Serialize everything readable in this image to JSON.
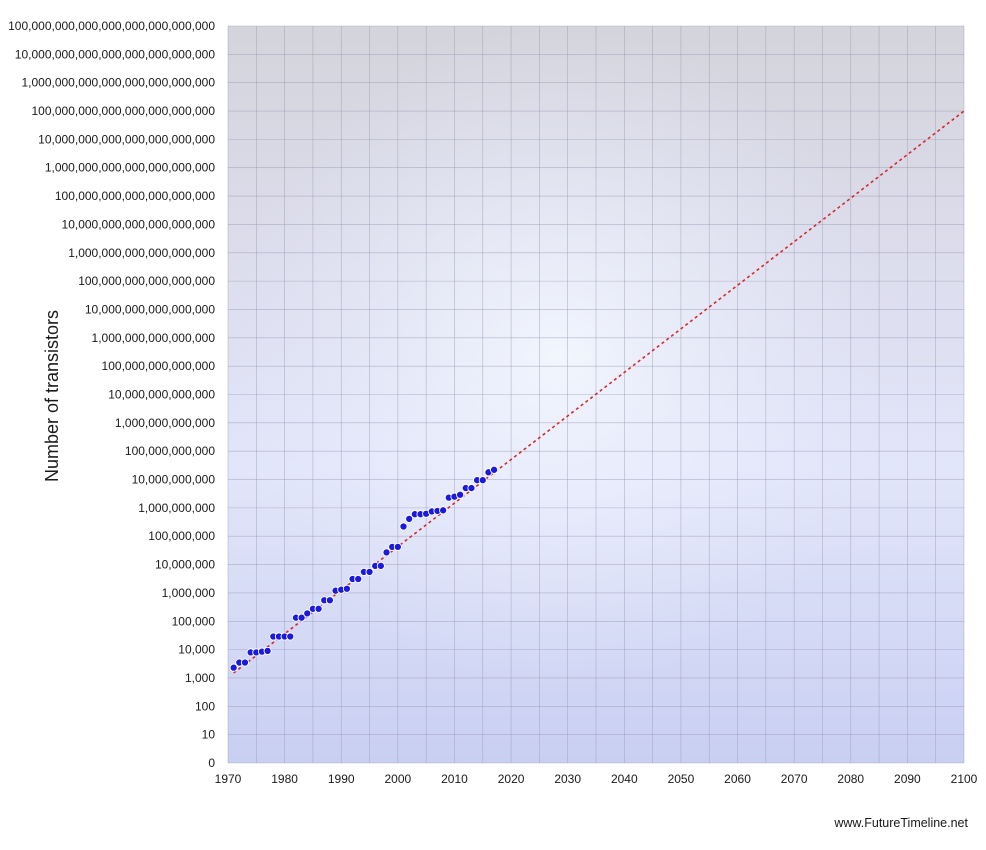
{
  "chart_data": {
    "type": "scatter",
    "title": "",
    "ylabel": "Number of transistors",
    "xlabel": "",
    "y_scale": "log",
    "xlim": [
      1970,
      2100
    ],
    "ylim": [
      0,
      100000000000000000000000000
    ],
    "x_ticks": [
      "1970",
      "1980",
      "1990",
      "2000",
      "2010",
      "2020",
      "2030",
      "2040",
      "2050",
      "2060",
      "2070",
      "2080",
      "2090",
      "2100"
    ],
    "y_ticks": [
      "0",
      "10",
      "100",
      "1,000",
      "10,000",
      "100,000",
      "1,000,000",
      "10,000,000",
      "100,000,000",
      "1,000,000,000",
      "10,000,000,000",
      "100,000,000,000",
      "1,000,000,000,000",
      "10,000,000,000,000",
      "100,000,000,000,000",
      "1,000,000,000,000,000",
      "10,000,000,000,000,000",
      "100,000,000,000,000,000",
      "1,000,000,000,000,000,000",
      "10,000,000,000,000,000,000",
      "100,000,000,000,000,000,000",
      "1,000,000,000,000,000,000,000",
      "10,000,000,000,000,000,000,000",
      "100,000,000,000,000,000,000,000",
      "1,000,000,000,000,000,000,000,000",
      "10,000,000,000,000,000,000,000,000",
      "100,000,000,000,000,000,000,000,000"
    ],
    "grid": true,
    "series": [
      {
        "color": "#1a1adf",
        "points": [
          [
            1971,
            2300
          ],
          [
            1972,
            3500
          ],
          [
            1973,
            3500
          ],
          [
            1974,
            8000
          ],
          [
            1975,
            8000
          ],
          [
            1976,
            8500
          ],
          [
            1977,
            9000
          ],
          [
            1978,
            29000
          ],
          [
            1979,
            29000
          ],
          [
            1980,
            29000
          ],
          [
            1981,
            29000
          ],
          [
            1982,
            134000
          ],
          [
            1983,
            134000
          ],
          [
            1984,
            190000
          ],
          [
            1985,
            275000
          ],
          [
            1986,
            275000
          ],
          [
            1987,
            550000
          ],
          [
            1988,
            550000
          ],
          [
            1989,
            1200000
          ],
          [
            1990,
            1300000
          ],
          [
            1991,
            1400000
          ],
          [
            1992,
            3100000
          ],
          [
            1993,
            3100000
          ],
          [
            1994,
            5500000
          ],
          [
            1995,
            5500000
          ],
          [
            1996,
            9000000
          ],
          [
            1997,
            9000000
          ],
          [
            1998,
            27000000
          ],
          [
            1999,
            42000000
          ],
          [
            2000,
            42000000
          ],
          [
            2001,
            220000000
          ],
          [
            2002,
            410000000
          ],
          [
            2003,
            600000000
          ],
          [
            2004,
            600000000
          ],
          [
            2005,
            620000000
          ],
          [
            2006,
            750000000
          ],
          [
            2007,
            780000000
          ],
          [
            2008,
            820000000
          ],
          [
            2009,
            2300000000
          ],
          [
            2010,
            2500000000
          ],
          [
            2011,
            2900000000
          ],
          [
            2012,
            5000000000
          ],
          [
            2013,
            5000000000
          ],
          [
            2014,
            9500000000
          ],
          [
            2015,
            9500000000
          ],
          [
            2016,
            18000000000
          ],
          [
            2017,
            22000000000
          ]
        ]
      }
    ],
    "trendline": {
      "style": "dotted",
      "color": "#d42a2a",
      "points": [
        [
          1971,
          1500
        ],
        [
          2100,
          100000000000000000000000
        ]
      ]
    }
  },
  "footer": {
    "credit": "www.FutureTimeline.net"
  }
}
